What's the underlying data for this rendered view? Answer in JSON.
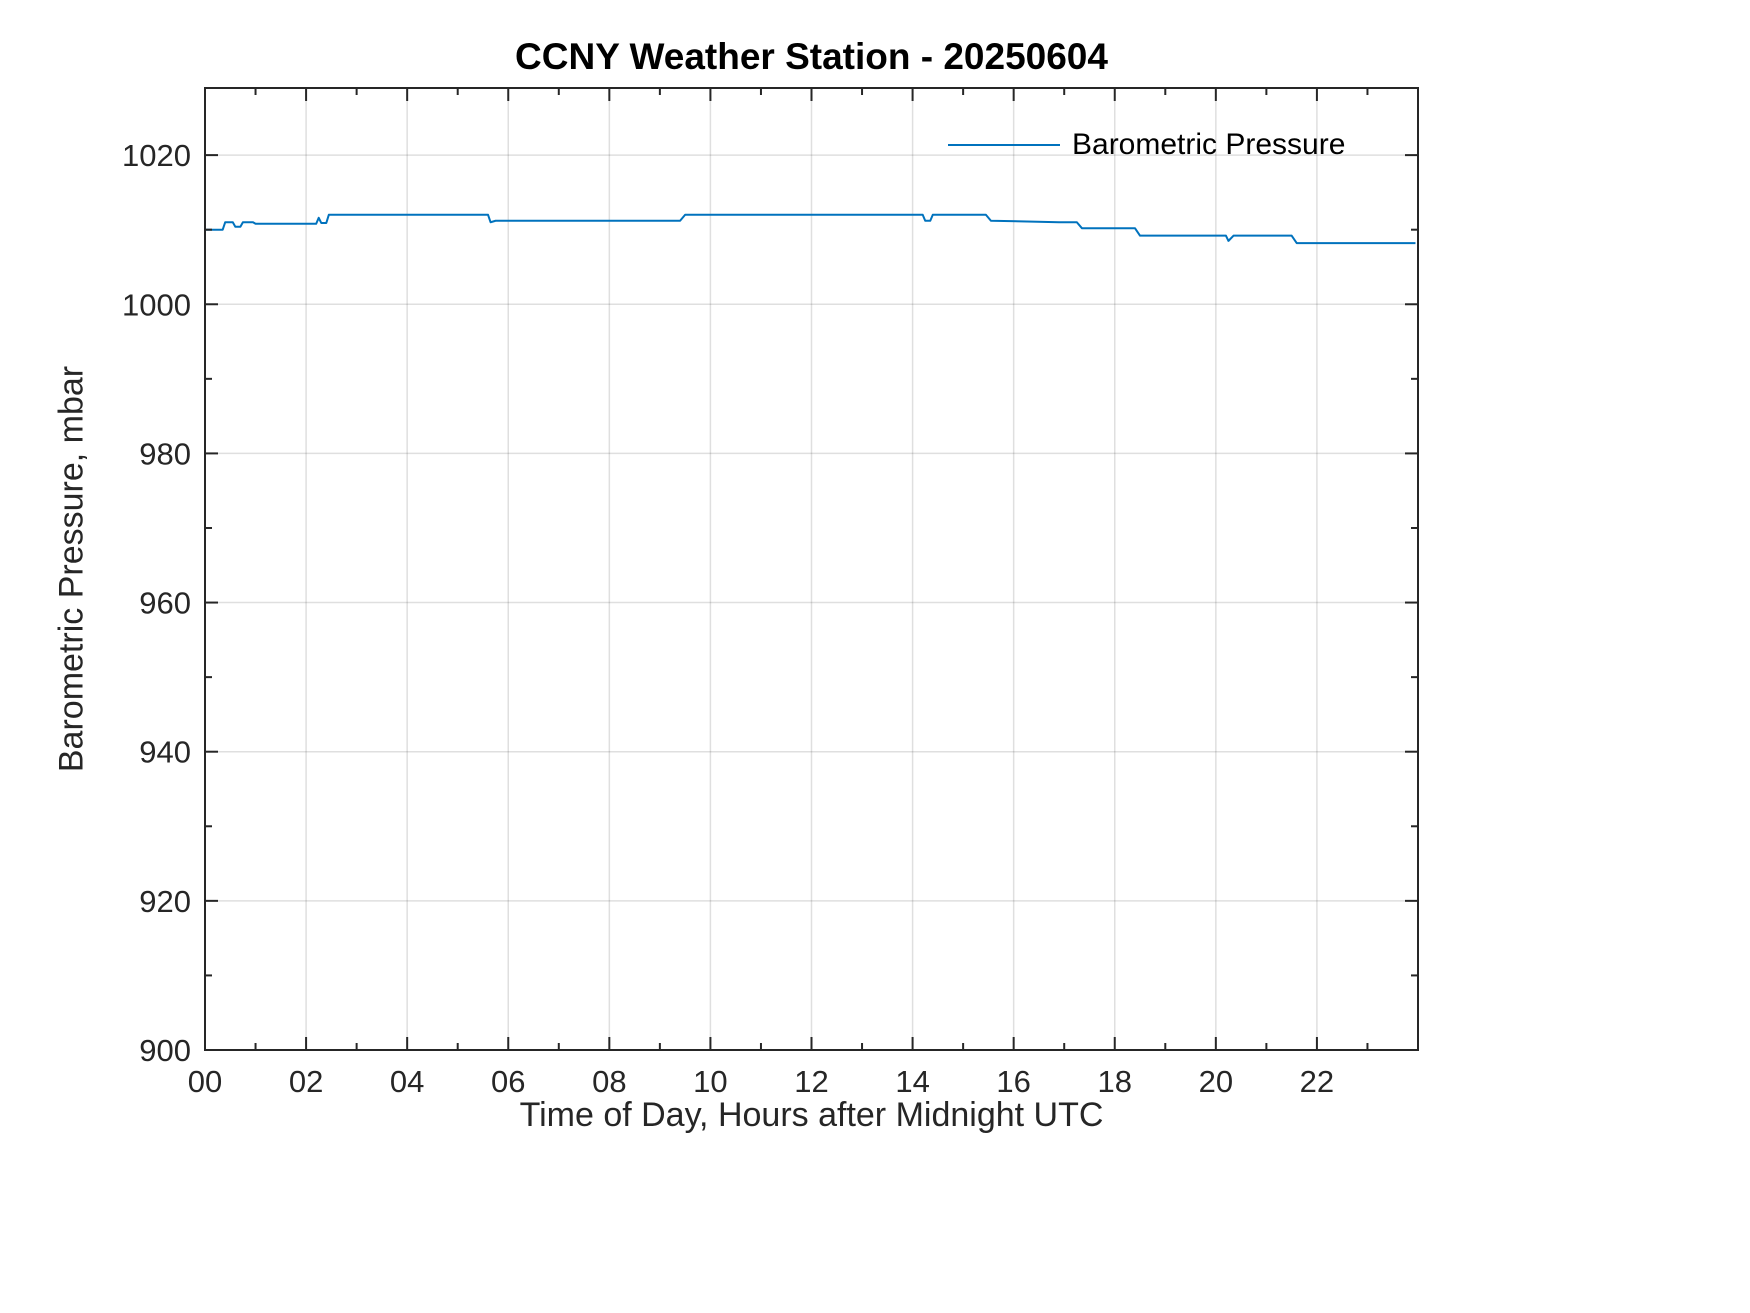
{
  "chart_data": {
    "type": "line",
    "title": "CCNY Weather Station - 20250604",
    "xlabel": "Time of Day, Hours after Midnight UTC",
    "ylabel": "Barometric Pressure, mbar",
    "grid": true,
    "legend": {
      "position": "top-right",
      "entries": [
        {
          "label": "Barometric Pressure",
          "color": "#0072BD"
        }
      ]
    },
    "xlim": [
      0,
      24
    ],
    "ylim": [
      900,
      1029
    ],
    "x_ticks": [
      0,
      2,
      4,
      6,
      8,
      10,
      12,
      14,
      16,
      18,
      20,
      22
    ],
    "x_tick_labels": [
      "00",
      "02",
      "04",
      "06",
      "08",
      "10",
      "12",
      "14",
      "16",
      "18",
      "20",
      "22"
    ],
    "y_ticks": [
      900,
      920,
      940,
      960,
      980,
      1000,
      1020
    ],
    "y_tick_labels": [
      "900",
      "920",
      "940",
      "960",
      "980",
      "1000",
      "1020"
    ],
    "x_minor_step": 1,
    "y_minor_step": 10,
    "series": [
      {
        "name": "Barometric Pressure",
        "color": "#0072BD",
        "x": [
          0,
          0.35,
          0.4,
          0.55,
          0.6,
          0.7,
          0.75,
          0.95,
          1.0,
          2.2,
          2.25,
          2.3,
          2.4,
          2.45,
          5.6,
          5.65,
          5.75,
          9.4,
          9.5,
          14.2,
          14.25,
          14.35,
          14.4,
          15.45,
          15.55,
          16.9,
          17.25,
          17.35,
          18.4,
          18.5,
          20.2,
          20.25,
          20.35,
          21.5,
          21.6,
          23.95
        ],
        "y": [
          1010,
          1010,
          1011,
          1011,
          1010.4,
          1010.4,
          1011,
          1011,
          1010.8,
          1010.8,
          1011.6,
          1010.9,
          1010.9,
          1012,
          1012,
          1011,
          1011.2,
          1011.2,
          1012,
          1012,
          1011.2,
          1011.2,
          1012,
          1012,
          1011.2,
          1011,
          1011,
          1010.2,
          1010.2,
          1009.2,
          1009.2,
          1008.5,
          1009.2,
          1009.2,
          1008.2,
          1008.2
        ]
      }
    ]
  },
  "style": {
    "axis_color": "#262626",
    "grid_color": "rgba(38,38,38,0.15)",
    "tick_label_color": "#262626",
    "background": "#ffffff"
  }
}
